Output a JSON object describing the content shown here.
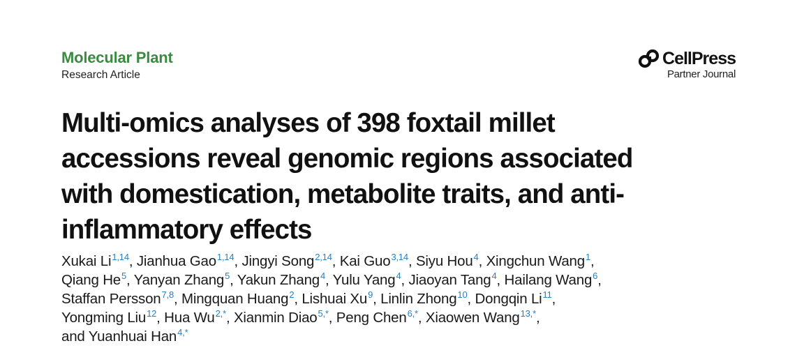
{
  "header": {
    "journal": "Molecular Plant",
    "article_type": "Research Article",
    "publisher": {
      "logo_icon": "cellpress-logo-icon",
      "name": "CellPress",
      "subtitle": "Partner Journal"
    }
  },
  "title_lines": [
    "Multi-omics analyses of 398 foxtail millet",
    "accessions reveal genomic regions associated",
    "with domestication, metabolite traits, and anti-",
    "inflammatory effects"
  ],
  "author_lines": [
    [
      {
        "name": "Xukai Li",
        "aff": "1,14"
      },
      {
        "name": "Jianhua Gao",
        "aff": "1,14"
      },
      {
        "name": "Jingyi Song",
        "aff": "2,14"
      },
      {
        "name": "Kai Guo",
        "aff": "3,14"
      },
      {
        "name": "Siyu Hou",
        "aff": "4"
      },
      {
        "name": "Xingchun Wang",
        "aff": "1"
      }
    ],
    [
      {
        "name": "Qiang He",
        "aff": "5"
      },
      {
        "name": "Yanyan Zhang",
        "aff": "5"
      },
      {
        "name": "Yakun Zhang",
        "aff": "4"
      },
      {
        "name": "Yulu Yang",
        "aff": "4"
      },
      {
        "name": "Jiaoyan Tang",
        "aff": "4"
      },
      {
        "name": "Hailang Wang",
        "aff": "6"
      }
    ],
    [
      {
        "name": "Staffan Persson",
        "aff": "7,8"
      },
      {
        "name": "Mingquan Huang",
        "aff": "2"
      },
      {
        "name": "Lishuai Xu",
        "aff": "9"
      },
      {
        "name": "Linlin Zhong",
        "aff": "10"
      },
      {
        "name": "Dongqin Li",
        "aff": "11"
      }
    ],
    [
      {
        "name": "Yongming Liu",
        "aff": "12"
      },
      {
        "name": "Hua Wu",
        "aff": "2,*"
      },
      {
        "name": "Xianmin Diao",
        "aff": "5,*"
      },
      {
        "name": "Peng Chen",
        "aff": "6,*"
      },
      {
        "name": "Xiaowen Wang",
        "aff": "13,*"
      }
    ],
    [
      {
        "name": "and Yuanhuai Han",
        "aff": "4,*"
      }
    ]
  ]
}
